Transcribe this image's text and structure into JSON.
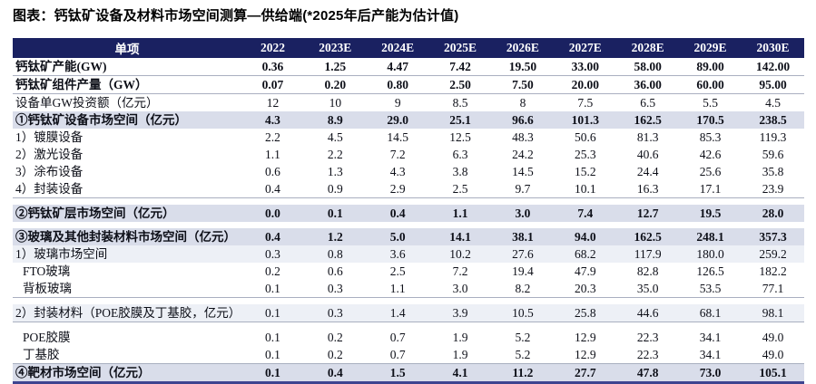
{
  "title": "图表：钙钛矿设备及材料市场空间测算—供给端(*2025年后产能为估计值)",
  "colors": {
    "header_bg": "#1a2161",
    "header_text": "#ffffff",
    "section_row_bg": "#d9ddea",
    "subsection_row_bg": "#edf0f6",
    "bottom_border": "#3e4490",
    "separator_line": "#a9afc0",
    "body_text": "#0d0f18"
  },
  "chart_data": {
    "type": "table",
    "title": "钙钛矿设备及材料市场空间测算—供给端(*2025年后产能为估计值)",
    "columns": [
      "单项",
      "2022",
      "2023E",
      "2024E",
      "2025E",
      "2026E",
      "2027E",
      "2028E",
      "2029E",
      "2030E"
    ],
    "note": "values duplicated in table.rows"
  },
  "table": {
    "columns": [
      "单项",
      "2022",
      "2023E",
      "2024E",
      "2025E",
      "2026E",
      "2027E",
      "2028E",
      "2029E",
      "2030E"
    ],
    "rows": [
      {
        "label": "钙钛矿产能(GW)",
        "style": "bold",
        "sep": true,
        "gapAfter": false,
        "values": [
          "0.36",
          "1.25",
          "4.47",
          "7.42",
          "19.50",
          "33.00",
          "58.00",
          "89.00",
          "142.00"
        ]
      },
      {
        "label": "钙钛矿组件产量（GW）",
        "style": "bold",
        "sep": true,
        "gapAfter": false,
        "values": [
          "0.07",
          "0.20",
          "0.80",
          "2.50",
          "7.50",
          "20.00",
          "36.00",
          "60.00",
          "95.00"
        ]
      },
      {
        "label": "设备单GW投资额（亿元）",
        "style": "normal",
        "sep": false,
        "gapAfter": false,
        "values": [
          "12",
          "10",
          "9",
          "8.5",
          "8",
          "7.5",
          "6.5",
          "5.5",
          "4.5"
        ]
      },
      {
        "label": "①钙钛矿设备市场空间（亿元）",
        "style": "section",
        "sep": false,
        "gapAfter": false,
        "values": [
          "4.3",
          "8.9",
          "29.0",
          "25.1",
          "96.6",
          "101.3",
          "162.5",
          "170.5",
          "238.5"
        ]
      },
      {
        "label": "1）镀膜设备",
        "style": "normal",
        "sep": false,
        "gapAfter": false,
        "values": [
          "2.2",
          "4.5",
          "14.5",
          "12.5",
          "48.3",
          "50.6",
          "81.3",
          "85.3",
          "119.3"
        ]
      },
      {
        "label": "2）激光设备",
        "style": "normal",
        "sep": false,
        "gapAfter": false,
        "values": [
          "1.1",
          "2.2",
          "7.2",
          "6.3",
          "24.2",
          "25.3",
          "40.6",
          "42.6",
          "59.6"
        ]
      },
      {
        "label": "3）涂布设备",
        "style": "normal",
        "sep": false,
        "gapAfter": false,
        "values": [
          "0.6",
          "1.3",
          "4.3",
          "3.8",
          "14.5",
          "15.2",
          "24.4",
          "25.6",
          "35.8"
        ]
      },
      {
        "label": "4）封装设备",
        "style": "normal",
        "sep": true,
        "gapAfter": true,
        "values": [
          "0.4",
          "0.9",
          "2.9",
          "2.5",
          "9.7",
          "10.1",
          "16.3",
          "17.1",
          "23.9"
        ]
      },
      {
        "label": "②钙钛矿层市场空间（亿元）",
        "style": "section",
        "sep": false,
        "gapAfter": true,
        "values": [
          "0.0",
          "0.1",
          "0.4",
          "1.1",
          "3.0",
          "7.4",
          "12.7",
          "19.5",
          "28.0"
        ]
      },
      {
        "label": "③玻璃及其他封装材料市场空间（亿元）",
        "style": "section",
        "sep": false,
        "gapAfter": false,
        "values": [
          "0.4",
          "1.2",
          "5.0",
          "14.1",
          "38.1",
          "94.0",
          "162.5",
          "248.1",
          "357.3"
        ]
      },
      {
        "label": "1）玻璃市场空间",
        "style": "subsection",
        "sep": false,
        "gapAfter": false,
        "values": [
          "0.3",
          "0.8",
          "3.6",
          "10.2",
          "27.6",
          "68.2",
          "117.9",
          "180.0",
          "259.2"
        ]
      },
      {
        "label": "FTO玻璃",
        "style": "indent",
        "sep": false,
        "gapAfter": false,
        "values": [
          "0.2",
          "0.6",
          "2.5",
          "7.2",
          "19.4",
          "47.9",
          "82.8",
          "126.5",
          "182.2"
        ]
      },
      {
        "label": "背板玻璃",
        "style": "indent",
        "sep": true,
        "gapAfter": true,
        "values": [
          "0.1",
          "0.3",
          "1.1",
          "3.0",
          "8.2",
          "20.3",
          "35.0",
          "53.5",
          "77.1"
        ]
      },
      {
        "label": "2）封装材料（POE胶膜及丁基胶，亿元）",
        "style": "subsection",
        "sep": true,
        "gapAfter": true,
        "values": [
          "0.1",
          "0.3",
          "1.4",
          "3.9",
          "10.5",
          "25.8",
          "44.6",
          "68.1",
          "98.1"
        ]
      },
      {
        "label": "POE胶膜",
        "style": "indent",
        "sep": false,
        "gapAfter": false,
        "values": [
          "0.1",
          "0.2",
          "0.7",
          "1.9",
          "5.2",
          "12.9",
          "22.3",
          "34.1",
          "49.0"
        ]
      },
      {
        "label": "丁基胶",
        "style": "indent",
        "sep": true,
        "gapAfter": false,
        "values": [
          "0.1",
          "0.2",
          "0.7",
          "1.9",
          "5.2",
          "12.9",
          "22.3",
          "34.1",
          "49.0"
        ]
      },
      {
        "label": "④靶材市场空间（亿元）",
        "style": "section",
        "sep": false,
        "gapAfter": false,
        "values": [
          "0.1",
          "0.4",
          "1.5",
          "4.1",
          "11.2",
          "27.7",
          "47.8",
          "73.0",
          "105.1"
        ]
      }
    ]
  }
}
